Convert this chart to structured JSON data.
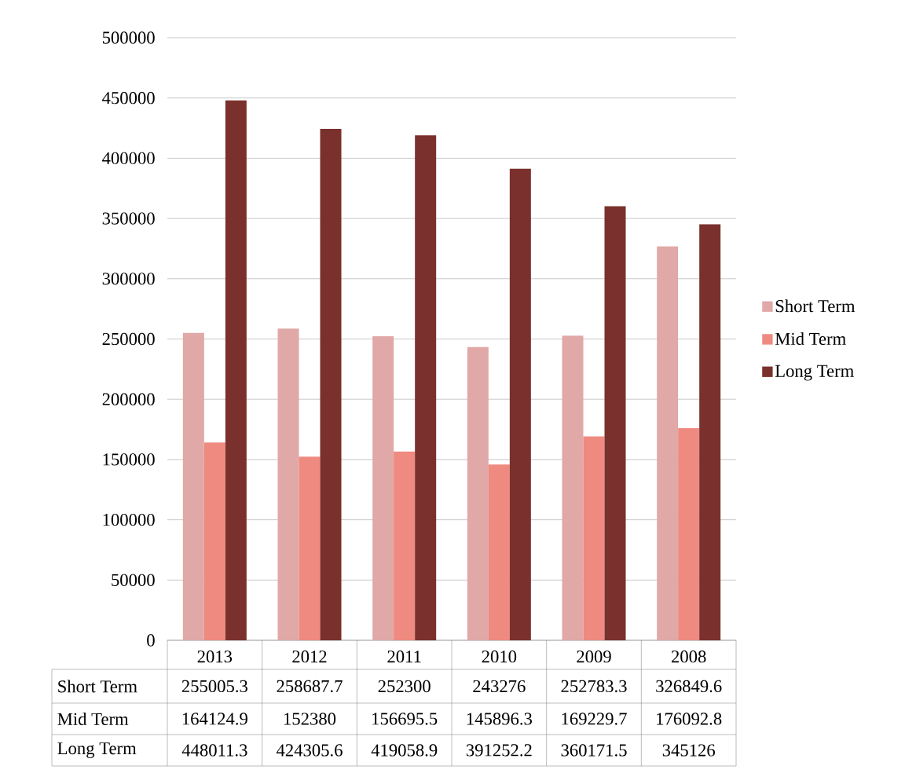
{
  "chart_data": {
    "type": "bar",
    "categories": [
      "2013",
      "2012",
      "2011",
      "2010",
      "2009",
      "2008"
    ],
    "series": [
      {
        "name": "Short Term",
        "color": "#e0a8a6",
        "values": [
          255005.3,
          258687.7,
          252300,
          243276,
          252783.3,
          326849.6
        ]
      },
      {
        "name": "Mid Term",
        "color": "#ee8a80",
        "values": [
          164124.9,
          152380,
          156695.5,
          145896.3,
          169229.7,
          176092.8
        ]
      },
      {
        "name": "Long Term",
        "color": "#7a302c",
        "values": [
          448011.3,
          424305.6,
          419058.9,
          391252.2,
          360171.5,
          345126
        ]
      }
    ],
    "ylim": [
      0,
      500000
    ],
    "yticks": [
      0,
      50000,
      100000,
      150000,
      200000,
      250000,
      300000,
      350000,
      400000,
      450000,
      500000
    ],
    "grid": "y",
    "legend": "right",
    "data_labels": true
  }
}
